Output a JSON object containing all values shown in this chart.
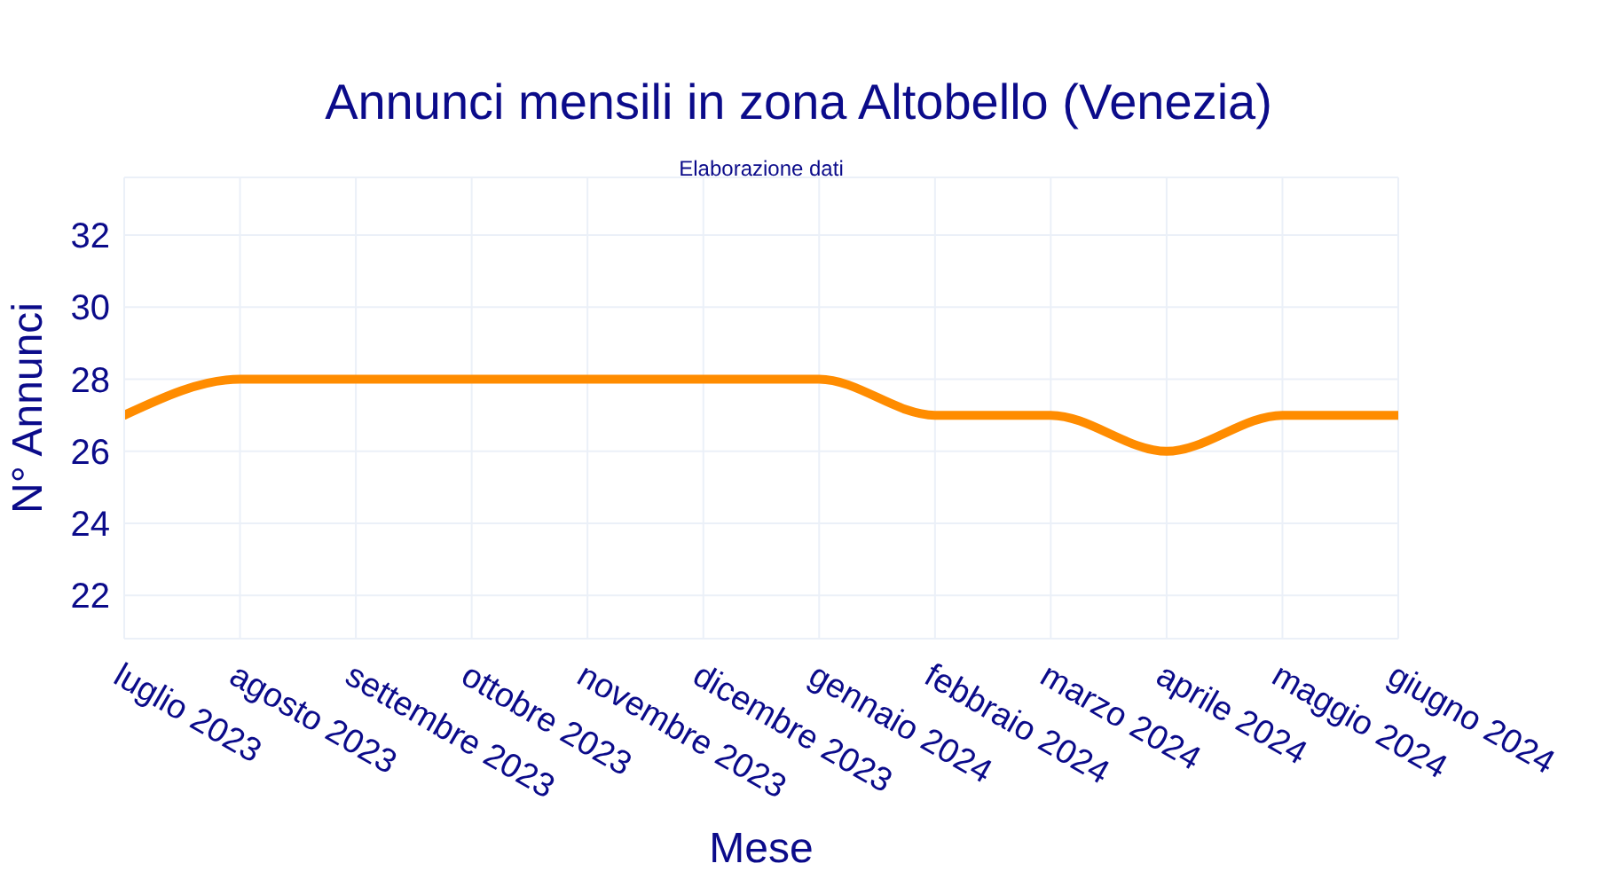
{
  "chart_data": {
    "type": "line",
    "title": "Annunci mensili in zona Altobello (Venezia)",
    "subtitle": "Elaborazione dati",
    "xlabel": "Mese",
    "ylabel": "N° Annunci",
    "categories": [
      "luglio 2023",
      "agosto 2023",
      "settembre 2023",
      "ottobre 2023",
      "novembre 2023",
      "dicembre 2023",
      "gennaio 2024",
      "febbraio 2024",
      "marzo 2024",
      "aprile 2024",
      "maggio 2024",
      "giugno 2024"
    ],
    "series": [
      {
        "color": "#ff8c00",
        "values": [
          27,
          28,
          28,
          28,
          28,
          28,
          28,
          27,
          27,
          26,
          27,
          27
        ]
      }
    ],
    "ylim": [
      20.8,
      33.6
    ],
    "yticks": [
      22,
      24,
      26,
      28,
      30,
      32
    ],
    "grid": true,
    "marker": "none",
    "line_style": "solid"
  }
}
